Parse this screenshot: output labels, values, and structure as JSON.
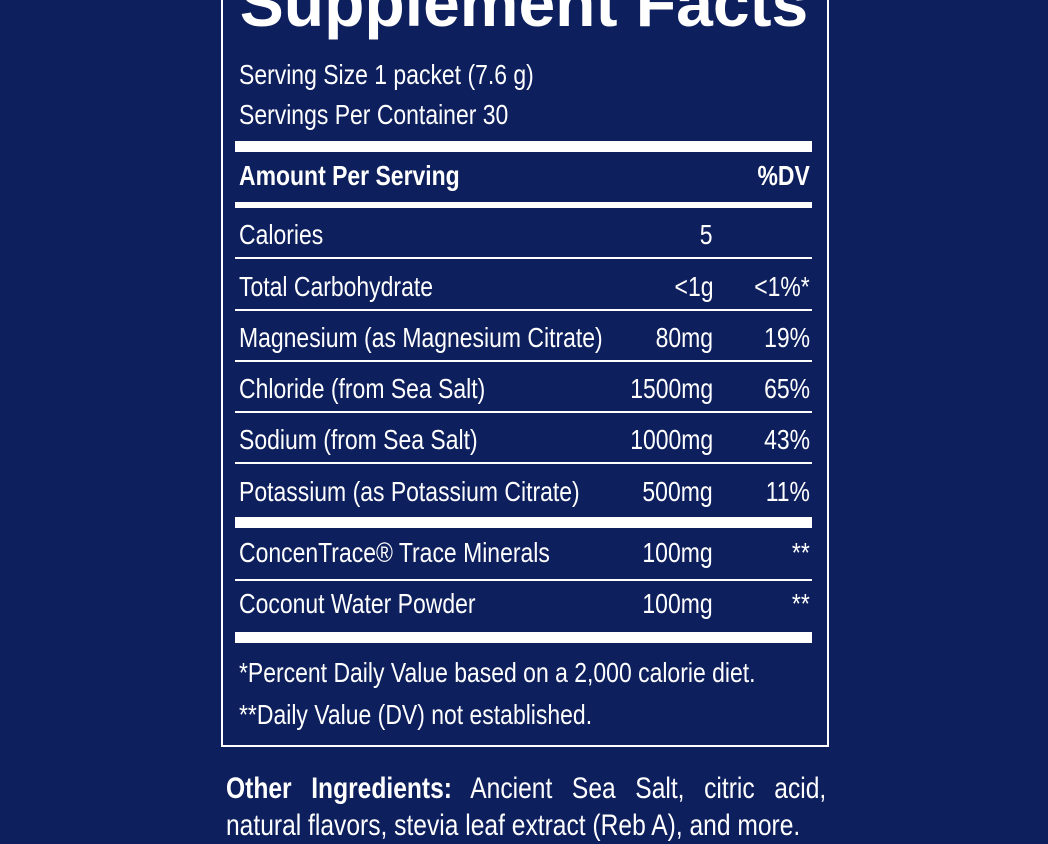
{
  "header": {
    "title": "Supplement Facts",
    "serving_size": "Serving Size 1 packet (7.6 g)",
    "servings_per_container": "Servings Per Container 30"
  },
  "table": {
    "header": {
      "name": "Amount Per Serving",
      "dv": "%DV"
    },
    "rows": [
      {
        "name": "Calories",
        "amount": "5"
      },
      {
        "name": "Total Carbohydrate",
        "amount": "<1g",
        "dv": "<1%*"
      },
      {
        "name": "Magnesium (as Magnesium Citrate)",
        "amount": "80mg",
        "dv": "19%"
      },
      {
        "name": "Chloride (from Sea Salt)",
        "amount": "1500mg",
        "dv": "65%"
      },
      {
        "name": "Sodium (from Sea Salt)",
        "amount": "1000mg",
        "dv": "43%"
      },
      {
        "name": "Potassium (as Potassium Citrate)",
        "amount": "500mg",
        "dv": "11%"
      }
    ],
    "other_rows": [
      {
        "name": "ConcenTrace® Trace Minerals",
        "amount": "100mg",
        "dv": "**"
      },
      {
        "name": "Coconut Water Powder",
        "amount": "100mg",
        "dv": "**"
      }
    ]
  },
  "footnotes": [
    "*Percent Daily Value based on a 2,000 calorie diet.",
    "**Daily Value (DV) not established."
  ],
  "other_ingredients": {
    "label": "Other Ingredients:",
    "text": "Ancient Sea Salt, citric acid, natural flavors, stevia leaf extract (Reb A), and more."
  }
}
